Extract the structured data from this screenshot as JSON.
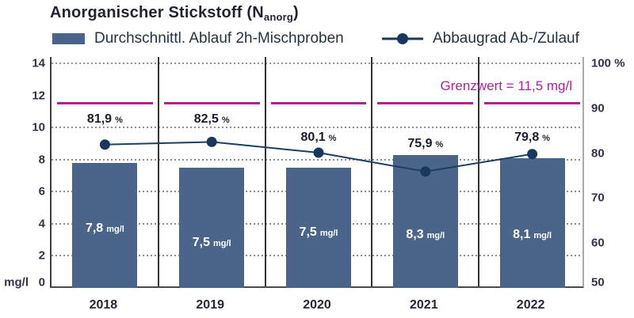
{
  "title": {
    "main": "Anorganischer Stickstoff (N",
    "sub": "anorg",
    "close": ")"
  },
  "legend": {
    "bar_label": "Durchschnittl. Ablauf 2h-Mischproben",
    "line_label": "Abbaugrad Ab-/Zulauf"
  },
  "chart_data": {
    "type": "bar",
    "categories": [
      "2018",
      "2019",
      "2020",
      "2021",
      "2022"
    ],
    "series": [
      {
        "name": "Durchschnittl. Ablauf 2h-Mischproben",
        "type": "bar",
        "unit": "mg/l",
        "values": [
          7.8,
          7.5,
          7.5,
          8.3,
          8.1
        ],
        "value_labels": [
          "7,8",
          "7,5",
          "7,5",
          "8,3",
          "8,1"
        ],
        "color": "#4a648a"
      },
      {
        "name": "Abbaugrad Ab-/Zulauf",
        "type": "line",
        "unit": "%",
        "values": [
          81.9,
          82.5,
          80.1,
          75.9,
          79.8
        ],
        "value_labels": [
          "81,9",
          "82,5",
          "80,1",
          "75,9",
          "79,8"
        ],
        "color": "#17395e"
      }
    ],
    "left_axis": {
      "unit": "mg/l",
      "min": 0,
      "max": 14,
      "ticks": [
        0,
        2,
        4,
        6,
        8,
        10,
        12,
        14
      ]
    },
    "right_axis": {
      "unit": "%",
      "min": 50,
      "max": 100,
      "ticks": [
        50,
        60,
        70,
        80,
        90,
        100
      ]
    },
    "gridlines": [
      2,
      4,
      6,
      8,
      10,
      14
    ],
    "threshold": {
      "value": 11.5,
      "label": "Grenzwert = 11,5 mg/l",
      "color": "#b1219e"
    },
    "colors": {
      "bar": "#4a648a",
      "line": "#1d3f66",
      "marker": "#17395e",
      "threshold": "#b1219e",
      "grid": "#8f8f8f",
      "separator": "#333333"
    },
    "legend_position": "top",
    "grid": "dotted-horizontal"
  }
}
